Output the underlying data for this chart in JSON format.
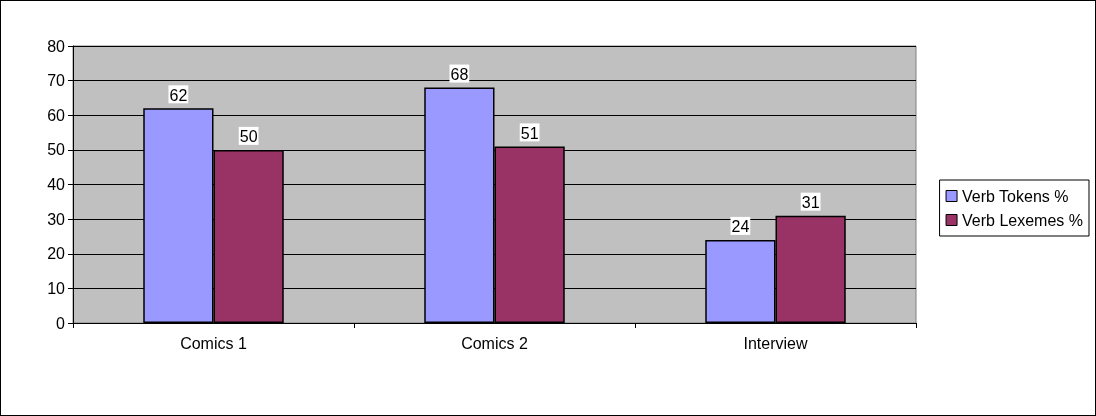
{
  "chart_data": {
    "type": "bar",
    "categories": [
      "Comics 1",
      "Comics 2",
      "Interview"
    ],
    "series": [
      {
        "name": "Verb Tokens %",
        "color": "#9999ff",
        "values": [
          62,
          68,
          24
        ]
      },
      {
        "name": "Verb Lexemes %",
        "color": "#993366",
        "values": [
          50,
          51,
          31
        ]
      }
    ],
    "ylim": [
      0,
      80
    ],
    "yticks": [
      0,
      10,
      20,
      30,
      40,
      50,
      60,
      70,
      80
    ],
    "grid": "y",
    "legend": "right",
    "data_labels": true
  }
}
